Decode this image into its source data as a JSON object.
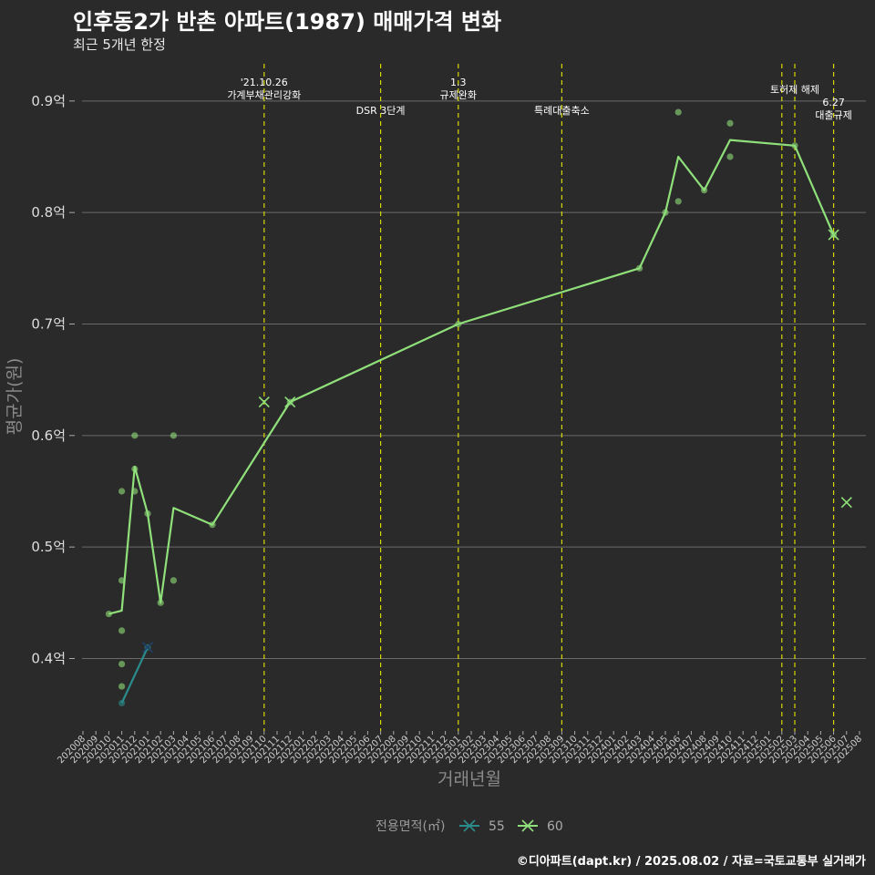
{
  "title": "인후동2가 반촌 아파트(1987) 매매가격 변화",
  "subtitle": "최근 5개년 한정",
  "caption": "©디아파트(dapt.kr) / 2025.08.02 / 자료=국토교통부 실거래가",
  "chart_data": {
    "type": "line",
    "xlabel": "거래년월",
    "ylabel": "평균가(원)",
    "ylim": [
      0.335,
      0.935
    ],
    "y_ticks": [
      {
        "value": 0.4,
        "label": "0.4억"
      },
      {
        "value": 0.5,
        "label": "0.5억"
      },
      {
        "value": 0.6,
        "label": "0.6억"
      },
      {
        "value": 0.7,
        "label": "0.7억"
      },
      {
        "value": 0.8,
        "label": "0.8억"
      },
      {
        "value": 0.9,
        "label": "0.9억"
      }
    ],
    "x_ticks": [
      "202008",
      "202009",
      "202010",
      "202011",
      "202012",
      "202101",
      "202102",
      "202103",
      "202104",
      "202105",
      "202106",
      "202107",
      "202108",
      "202109",
      "202110",
      "202111",
      "202112",
      "202201",
      "202202",
      "202203",
      "202204",
      "202205",
      "202206",
      "202207",
      "202208",
      "202209",
      "202210",
      "202211",
      "202212",
      "202301",
      "202302",
      "202303",
      "202304",
      "202305",
      "202306",
      "202307",
      "202308",
      "202309",
      "202310",
      "202311",
      "202312",
      "202401",
      "202402",
      "202403",
      "202404",
      "202405",
      "202406",
      "202407",
      "202408",
      "202409",
      "202410",
      "202411",
      "202412",
      "202501",
      "202502",
      "202503",
      "202504",
      "202505",
      "202506",
      "202507",
      "202508"
    ],
    "grid": true,
    "legend_title": "전용면적(㎡)",
    "legend_position": "bottom",
    "series": [
      {
        "name": "55",
        "color": "#2a8c8c",
        "line": [
          [
            "202011",
            0.36
          ],
          [
            "202101",
            0.41
          ]
        ],
        "points": [
          [
            "202011",
            0.36
          ],
          [
            "202101",
            0.41
          ]
        ],
        "crosses": [
          [
            "202101",
            0.41
          ]
        ]
      },
      {
        "name": "60",
        "color": "#8fe07a",
        "line": [
          [
            "202010",
            0.44
          ],
          [
            "202011",
            0.443
          ],
          [
            "202012",
            0.572
          ],
          [
            "202101",
            0.53
          ],
          [
            "202102",
            0.45
          ],
          [
            "202103",
            0.535
          ],
          [
            "202106",
            0.52
          ],
          [
            "202112",
            0.63
          ],
          [
            "202301",
            0.7
          ],
          [
            "202403",
            0.75
          ],
          [
            "202405",
            0.8
          ],
          [
            "202406",
            0.85
          ],
          [
            "202408",
            0.82
          ],
          [
            "202410",
            0.865
          ],
          [
            "202503",
            0.86
          ],
          [
            "202506",
            0.78
          ]
        ],
        "points": [
          [
            "202010",
            0.44
          ],
          [
            "202011",
            0.47
          ],
          [
            "202011",
            0.425
          ],
          [
            "202011",
            0.395
          ],
          [
            "202011",
            0.375
          ],
          [
            "202011",
            0.55
          ],
          [
            "202012",
            0.6
          ],
          [
            "202012",
            0.57
          ],
          [
            "202012",
            0.55
          ],
          [
            "202101",
            0.53
          ],
          [
            "202102",
            0.45
          ],
          [
            "202103",
            0.6
          ],
          [
            "202103",
            0.47
          ],
          [
            "202106",
            0.52
          ],
          [
            "202112",
            0.63
          ],
          [
            "202301",
            0.7
          ],
          [
            "202403",
            0.75
          ],
          [
            "202405",
            0.8
          ],
          [
            "202406",
            0.89
          ],
          [
            "202406",
            0.81
          ],
          [
            "202408",
            0.82
          ],
          [
            "202410",
            0.88
          ],
          [
            "202410",
            0.85
          ],
          [
            "202503",
            0.86
          ],
          [
            "202506",
            0.78
          ]
        ],
        "crosses": [
          [
            "202110",
            0.63
          ],
          [
            "202112",
            0.63
          ],
          [
            "202506",
            0.78
          ],
          [
            "202507",
            0.54
          ]
        ]
      }
    ],
    "events": [
      {
        "x": "202110",
        "lines": [
          "'21.10.26",
          "가계부채관리강화"
        ],
        "row": 1
      },
      {
        "x": "202207",
        "lines": [
          "DSR 3단계"
        ],
        "row": 2
      },
      {
        "x": "202301",
        "lines": [
          "1.3",
          "규제완화"
        ],
        "row": 1
      },
      {
        "x": "202309",
        "lines": [
          "특례대출축소"
        ],
        "row": 2
      },
      {
        "x": "202502",
        "lines": [],
        "row": 0
      },
      {
        "x": "202503",
        "lines": [
          "토허제 해제"
        ],
        "row": 0
      },
      {
        "x": "202506",
        "lines": [
          "6.27",
          "대출규제"
        ],
        "row": 3
      }
    ]
  }
}
